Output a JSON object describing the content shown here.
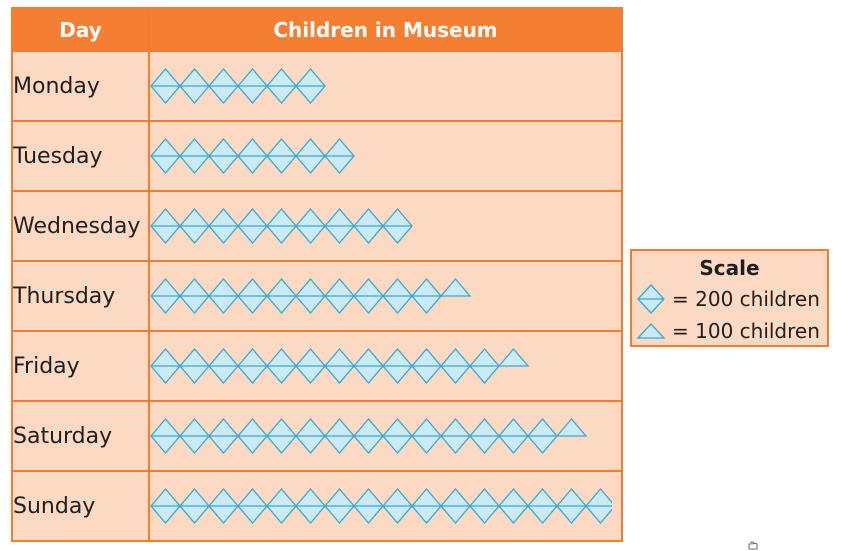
{
  "chart_data": {
    "type": "table",
    "subtype": "pictograph",
    "columns": [
      "Day",
      "Children in Museum"
    ],
    "rows": [
      {
        "day": "Monday",
        "children": 1200,
        "full_symbols": 6,
        "half_symbols": 0
      },
      {
        "day": "Tuesday",
        "children": 1400,
        "full_symbols": 7,
        "half_symbols": 0
      },
      {
        "day": "Wednesday",
        "children": 1800,
        "full_symbols": 9,
        "half_symbols": 0
      },
      {
        "day": "Thursday",
        "children": 2100,
        "full_symbols": 10,
        "half_symbols": 1
      },
      {
        "day": "Friday",
        "children": 2500,
        "full_symbols": 12,
        "half_symbols": 1
      },
      {
        "day": "Saturday",
        "children": 2900,
        "full_symbols": 14,
        "half_symbols": 1
      },
      {
        "day": "Sunday",
        "children": 3200,
        "full_symbols": 16,
        "half_symbols": 0
      }
    ],
    "scale": {
      "title": "Scale",
      "full_symbol": {
        "icon": "diamond-icon",
        "label": "= 200 children",
        "value": 200
      },
      "half_symbol": {
        "icon": "triangle-icon",
        "label": "= 100 children",
        "value": 100
      }
    },
    "colors": {
      "header_bg": "#f47f33",
      "header_text": "#ffffff",
      "cell_bg": "#fbd9c2",
      "border": "#ef7d32",
      "icon_fill": "#cbeaf3",
      "icon_stroke": "#36a9d6"
    }
  }
}
